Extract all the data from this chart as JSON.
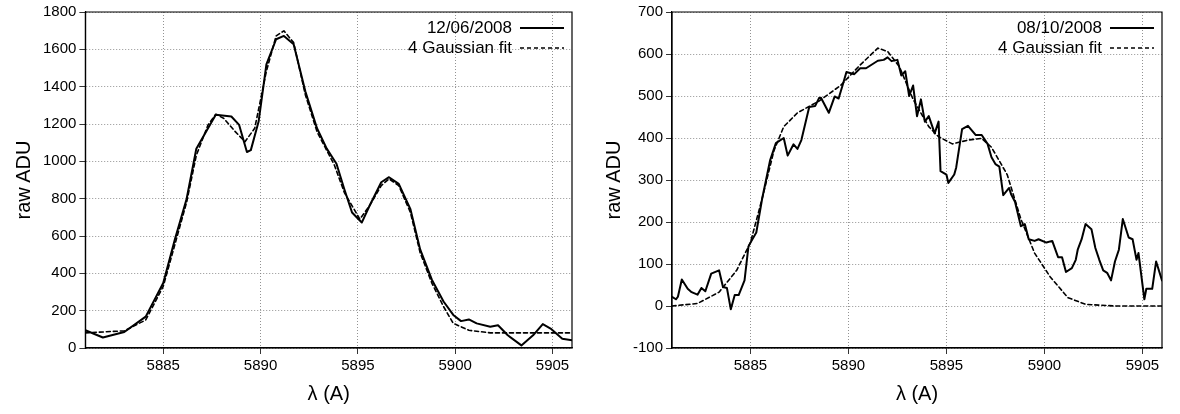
{
  "chart_data": [
    {
      "type": "line",
      "xlabel": "λ (A)",
      "ylabel": "raw ADU",
      "xlim": [
        5881,
        5906
      ],
      "xticks": [
        5885,
        5890,
        5895,
        5900,
        5905
      ],
      "ylim": [
        0,
        1800
      ],
      "yticks": [
        0,
        200,
        400,
        600,
        800,
        1000,
        1200,
        1400,
        1600,
        1800
      ],
      "grid": true,
      "legend": "top right",
      "marker": "none",
      "series": [
        {
          "name": "12/06/2008",
          "color": "#000000",
          "line_style": "solid",
          "x": [
            5881,
            5881.9,
            5883,
            5884.1,
            5885,
            5885.6,
            5886.2,
            5886.7,
            5887.5,
            5887.7,
            5888.5,
            5888.9,
            5889.3,
            5889.5,
            5889.9,
            5890.3,
            5890.8,
            5891.2,
            5891.7,
            5892.3,
            5892.9,
            5893.4,
            5893.9,
            5894.3,
            5894.7,
            5895.2,
            5895.6,
            5896.2,
            5896.6,
            5897.1,
            5897.7,
            5898.2,
            5898.8,
            5899.4,
            5899.9,
            5900.3,
            5900.7,
            5901.1,
            5901.8,
            5902.2,
            5902.7,
            5903.4,
            5904,
            5904.5,
            5904.9,
            5905.5,
            5906
          ],
          "values": [
            95,
            56,
            86,
            168,
            348,
            582,
            798,
            1068,
            1213,
            1249,
            1240,
            1195,
            1050,
            1060,
            1213,
            1519,
            1654,
            1672,
            1627,
            1375,
            1177,
            1068,
            987,
            852,
            726,
            672,
            762,
            888,
            915,
            879,
            744,
            528,
            366,
            249,
            177,
            144,
            153,
            132,
            114,
            122,
            68,
            14,
            68,
            128,
            104,
            50,
            41
          ]
        },
        {
          "name": "4 Gaussian fit",
          "color": "#000000",
          "line_style": "dashed",
          "x": [
            5881,
            5883,
            5884.1,
            5885,
            5885.6,
            5886.2,
            5886.7,
            5887.3,
            5887.7,
            5888.1,
            5888.7,
            5889.2,
            5889.7,
            5890.3,
            5890.8,
            5891.2,
            5891.7,
            5892.3,
            5892.9,
            5893.8,
            5894.3,
            5895.1,
            5895.6,
            5896.2,
            5896.6,
            5897.1,
            5897.7,
            5898.2,
            5898.8,
            5899.4,
            5899.9,
            5900.7,
            5901.8,
            5906
          ],
          "values": [
            81,
            92,
            150,
            330,
            555,
            780,
            1032,
            1195,
            1252,
            1231,
            1159,
            1105,
            1177,
            1483,
            1672,
            1699,
            1636,
            1357,
            1159,
            978,
            834,
            690,
            762,
            870,
            906,
            870,
            726,
            510,
            348,
            222,
            132,
            95,
            81,
            81
          ]
        }
      ]
    },
    {
      "type": "line",
      "xlabel": "λ (A)",
      "ylabel": "raw ADU",
      "xlim": [
        5881,
        5906
      ],
      "xticks": [
        5885,
        5890,
        5895,
        5900,
        5905
      ],
      "ylim": [
        -100,
        700
      ],
      "yticks": [
        -100,
        0,
        100,
        200,
        300,
        400,
        500,
        600,
        700
      ],
      "grid": true,
      "legend": "top right",
      "marker": "none",
      "series": [
        {
          "name": "08/10/2008",
          "color": "#000000",
          "line_style": "solid",
          "x": [
            5881,
            5881.2,
            5881.3,
            5881.5,
            5881.8,
            5882,
            5882.3,
            5882.5,
            5882.7,
            5883,
            5883.4,
            5883.6,
            5883.8,
            5884,
            5884.2,
            5884.4,
            5884.7,
            5884.9,
            5885.1,
            5885.3,
            5885.6,
            5886,
            5886.3,
            5886.7,
            5886.9,
            5887.2,
            5887.4,
            5887.6,
            5888,
            5888.3,
            5888.5,
            5888.6,
            5889,
            5889.3,
            5889.5,
            5889.7,
            5889.9,
            5890.3,
            5890.6,
            5890.9,
            5891.1,
            5891.5,
            5891.8,
            5892,
            5892.2,
            5892.5,
            5892.7,
            5892.9,
            5893.1,
            5893.3,
            5893.5,
            5893.7,
            5893.9,
            5894.1,
            5894.4,
            5894.6,
            5894.7,
            5895,
            5895.1,
            5895.4,
            5895.5,
            5895.8,
            5896.1,
            5896.5,
            5896.8,
            5897.1,
            5897.3,
            5897.5,
            5897.7,
            5897.9,
            5898.2,
            5898.3,
            5898.5,
            5898.8,
            5899,
            5899.2,
            5899.5,
            5899.7,
            5900.1,
            5900.4,
            5900.7,
            5900.9,
            5901.1,
            5901.4,
            5901.6,
            5901.7,
            5901.9,
            5902.1,
            5902.4,
            5902.6,
            5902.8,
            5903,
            5903.2,
            5903.4,
            5903.6,
            5903.8,
            5904,
            5904.3,
            5904.5,
            5904.7,
            5904.8,
            5905.1,
            5905.2,
            5905.5,
            5905.7,
            5906
          ],
          "values": [
            22,
            16,
            22,
            63,
            41,
            33,
            27,
            43,
            35,
            77,
            85,
            45,
            43,
            -8,
            26,
            26,
            61,
            142,
            159,
            175,
            256,
            346,
            388,
            400,
            358,
            385,
            374,
            395,
            474,
            476,
            495,
            496,
            460,
            499,
            494,
            525,
            557,
            552,
            566,
            566,
            572,
            584,
            586,
            592,
            583,
            586,
            549,
            559,
            500,
            525,
            452,
            492,
            439,
            452,
            411,
            439,
            321,
            313,
            293,
            313,
            330,
            421,
            429,
            407,
            407,
            386,
            354,
            338,
            332,
            264,
            281,
            266,
            248,
            190,
            195,
            159,
            155,
            159,
            151,
            155,
            116,
            116,
            81,
            90,
            110,
            134,
            159,
            195,
            183,
            138,
            110,
            85,
            79,
            61,
            106,
            134,
            207,
            163,
            159,
            110,
            126,
            16,
            41,
            41,
            106,
            61
          ]
        },
        {
          "name": "4 Gaussian fit",
          "color": "#000000",
          "line_style": "dashed",
          "x": [
            5881,
            5882.3,
            5883.4,
            5884.3,
            5885,
            5885.6,
            5886.2,
            5886.7,
            5887.4,
            5888.5,
            5889.6,
            5890.6,
            5891.5,
            5892,
            5892.6,
            5893.3,
            5894.1,
            5894.6,
            5895.3,
            5896.1,
            5896.8,
            5897.3,
            5898.1,
            5898.8,
            5899.5,
            5900.3,
            5901.2,
            5902.1,
            5903.6,
            5906
          ],
          "values": [
            0,
            6,
            33,
            85,
            151,
            256,
            370,
            427,
            460,
            488,
            525,
            574,
            614,
            606,
            570,
            492,
            427,
            403,
            386,
            395,
            399,
            378,
            313,
            207,
            126,
            69,
            20,
            4,
            0,
            0
          ]
        }
      ]
    }
  ]
}
